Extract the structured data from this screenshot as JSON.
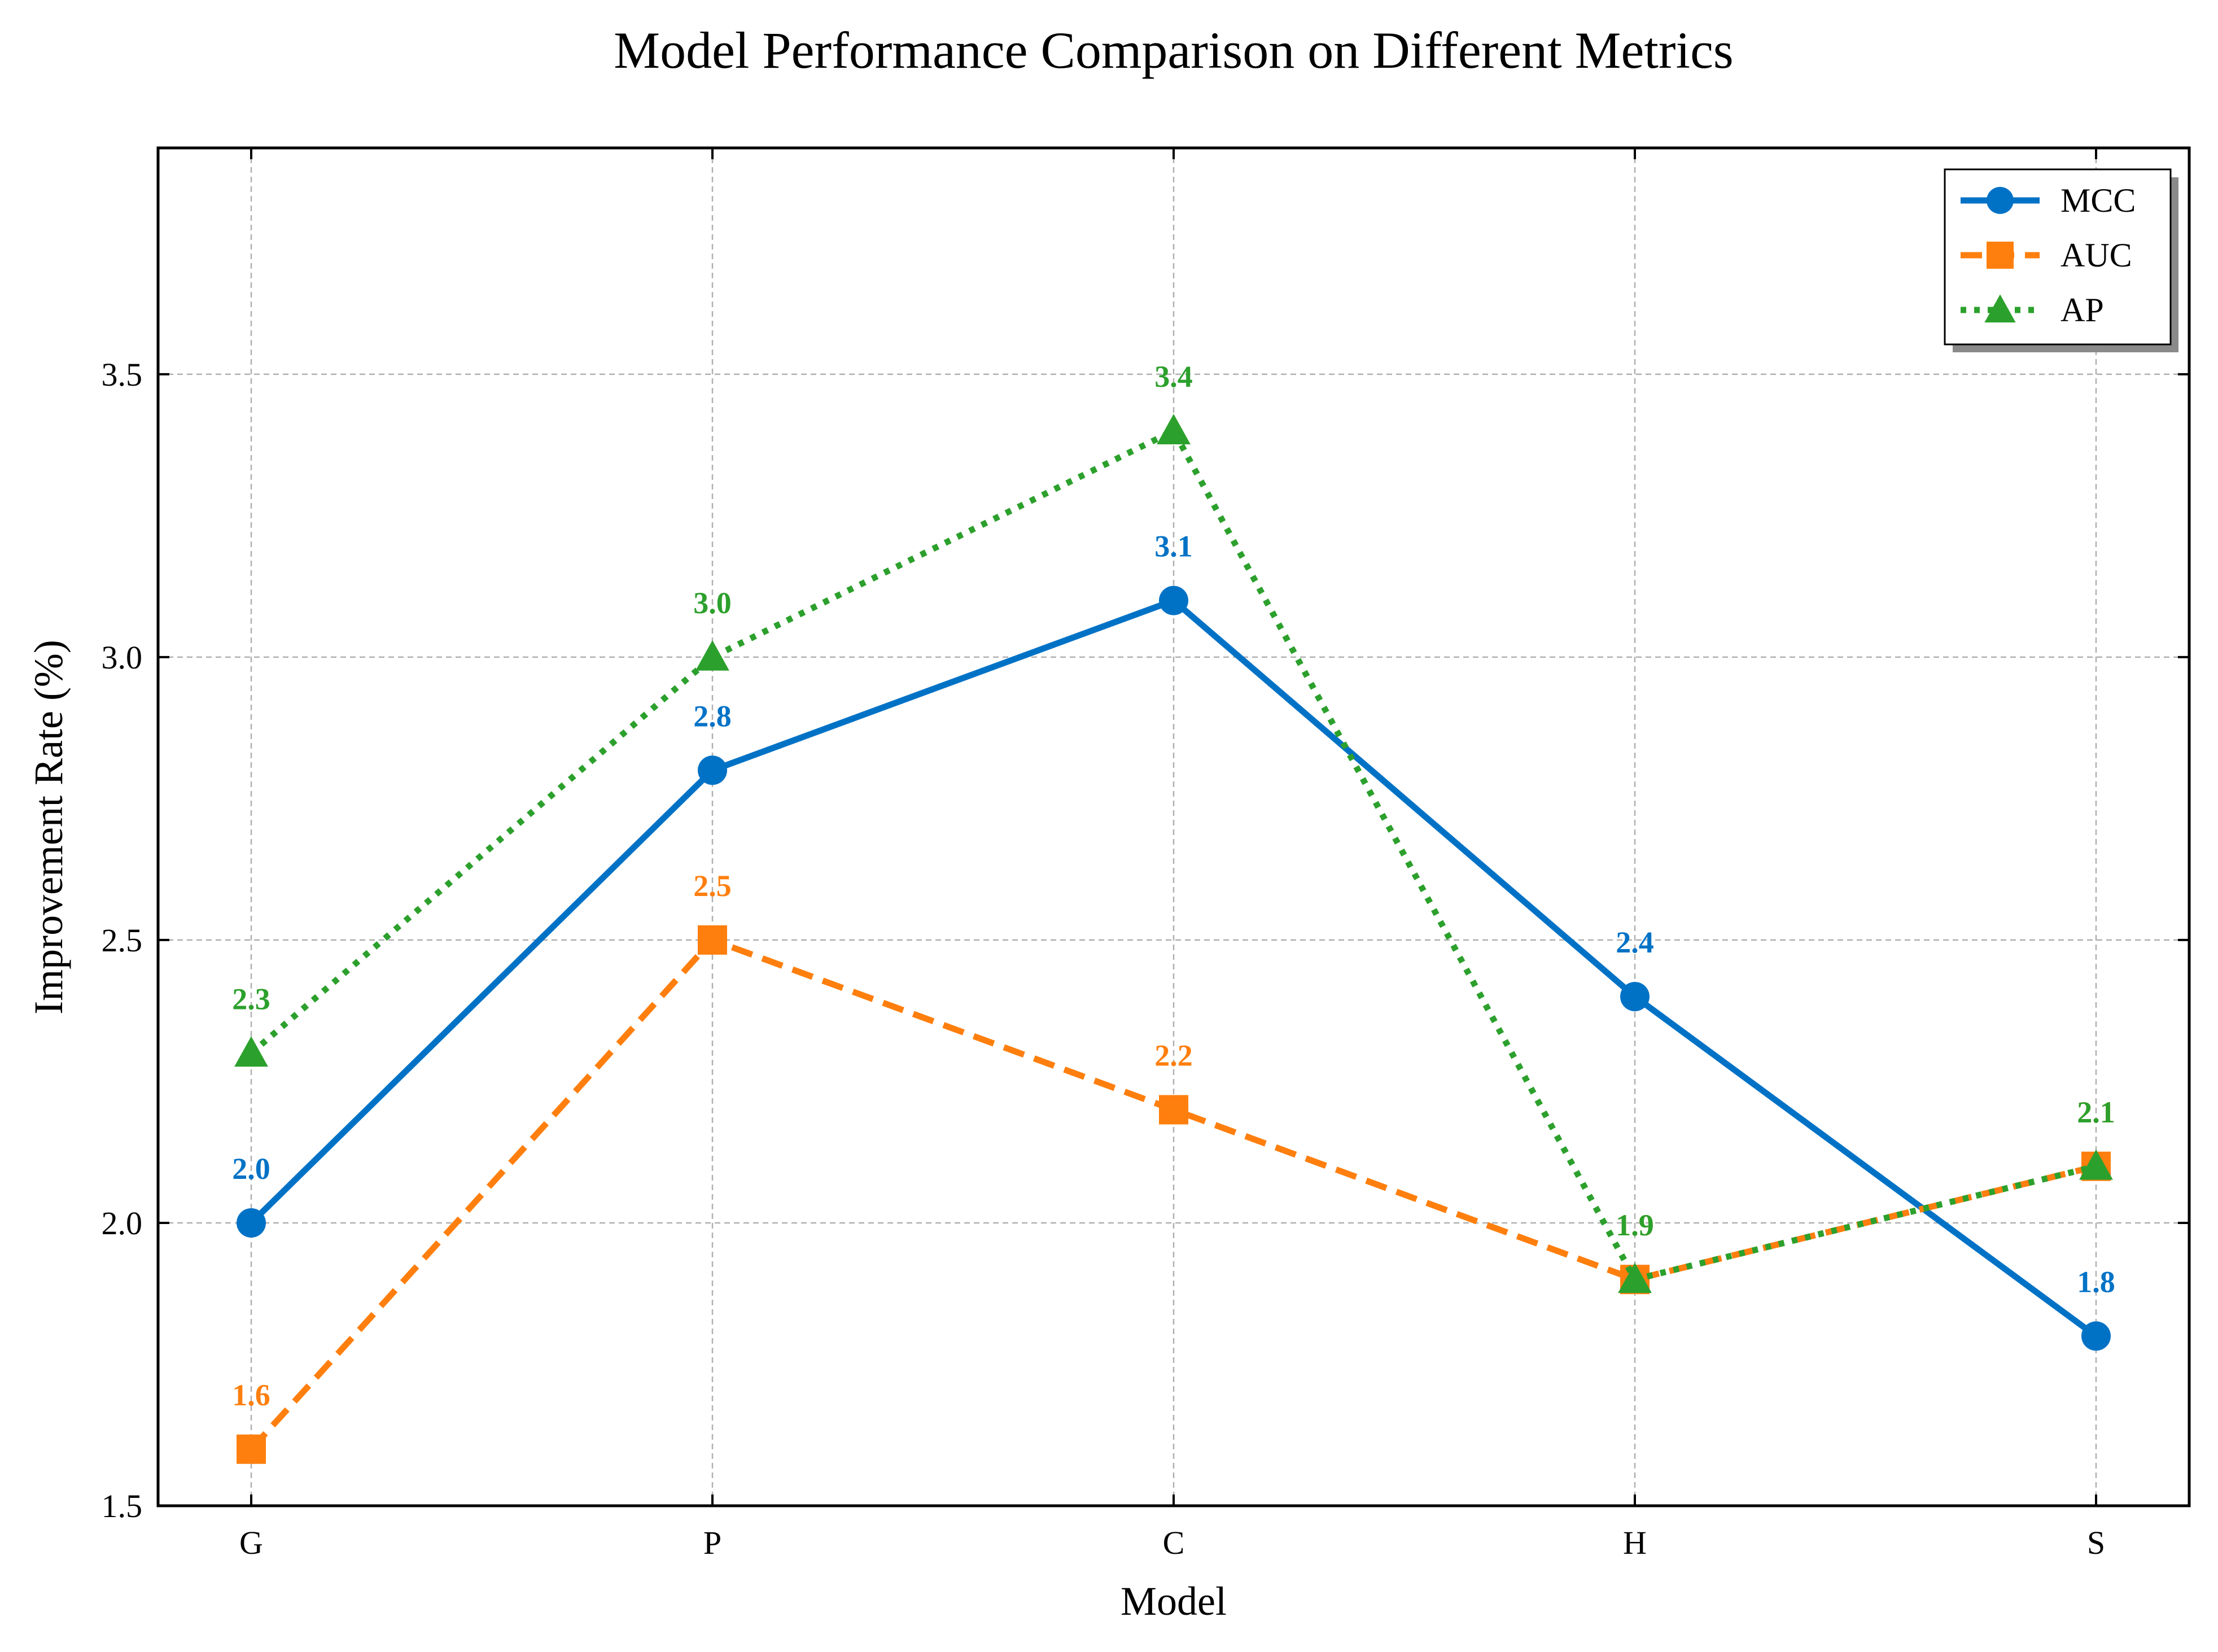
{
  "chart_data": {
    "type": "line",
    "title": "Model Performance Comparison on Different Metrics",
    "xlabel": "Model",
    "ylabel": "Improvement Rate (%)",
    "categories": [
      "G",
      "P",
      "C",
      "H",
      "S"
    ],
    "ylim": [
      1.5,
      3.9
    ],
    "yticks": [
      1.5,
      2.0,
      2.5,
      3.0,
      3.5
    ],
    "ytick_labels": [
      "1.5",
      "2.0",
      "2.5",
      "3.0",
      "3.5"
    ],
    "grid": true,
    "legend_position": "top-right",
    "series": [
      {
        "name": "MCC",
        "values": [
          2.0,
          2.8,
          3.1,
          2.4,
          1.8
        ],
        "labels": [
          "2.0",
          "2.8",
          "3.1",
          "2.4",
          "1.8"
        ],
        "color": "#0072c6",
        "linestyle": "solid",
        "marker": "circle"
      },
      {
        "name": "AUC",
        "values": [
          1.6,
          2.5,
          2.2,
          1.9,
          2.1
        ],
        "labels": [
          "1.6",
          "2.5",
          "2.2",
          "1.9",
          "2.1"
        ],
        "color": "#ff7f0e",
        "linestyle": "dashed",
        "marker": "square"
      },
      {
        "name": "AP",
        "values": [
          2.3,
          3.0,
          3.4,
          1.9,
          2.1
        ],
        "labels": [
          "2.3",
          "3.0",
          "3.4",
          "1.9",
          "2.1"
        ],
        "color": "#2ca02c",
        "linestyle": "dotted",
        "marker": "triangle"
      }
    ]
  }
}
